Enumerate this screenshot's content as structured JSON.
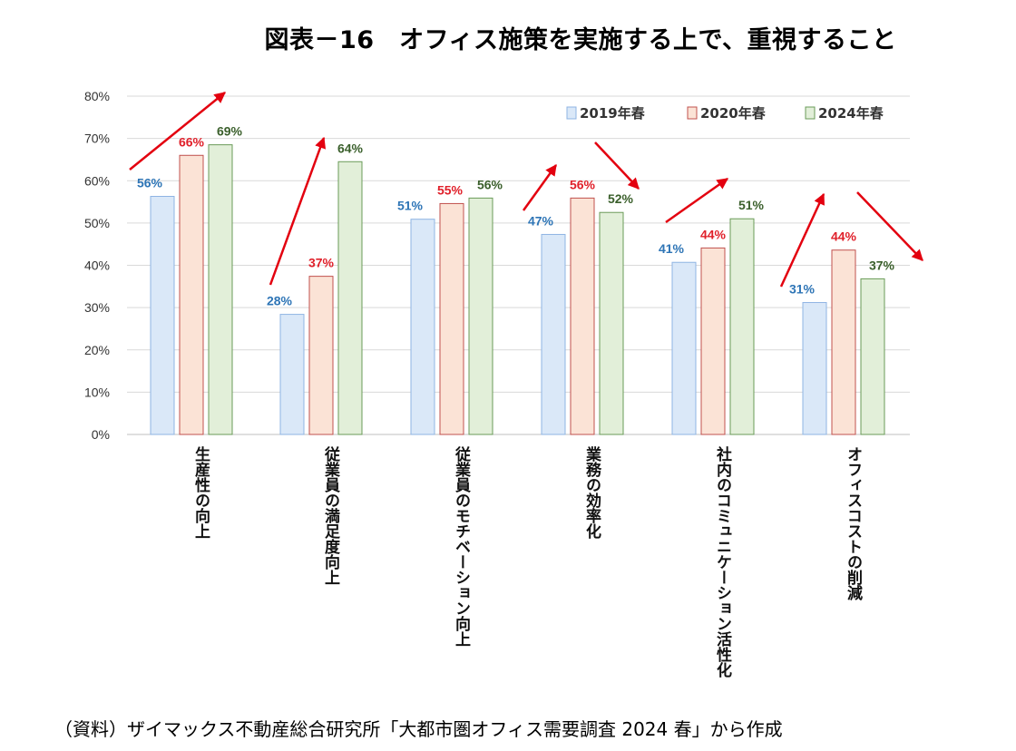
{
  "title": "図表－16　オフィス施策を実施する上で、重視すること",
  "source": "（資料）ザイマックス不動産総合研究所「大都市圏オフィス需要調査 2024 春」から作成",
  "chart_data": {
    "type": "bar",
    "title": "図表－16　オフィス施策を実施する上で、重視すること",
    "xlabel": "",
    "ylabel": "",
    "ylim": [
      0,
      80
    ],
    "ytick_step": 10,
    "ytick_labels": [
      "0%",
      "10%",
      "20%",
      "30%",
      "40%",
      "50%",
      "60%",
      "70%",
      "80%"
    ],
    "grid": true,
    "legend_position": "top-right",
    "categories": [
      "生産性の向上",
      "従業員の満足度向上",
      "従業員のモチベーション向上",
      "業務の効率化",
      "社内のコミュニケーション活性化",
      "オフィスコストの削減"
    ],
    "series": [
      {
        "name": "2019年春",
        "values": [
          56,
          28,
          51,
          47,
          41,
          31
        ],
        "actual": [
          56.3,
          28.4,
          50.9,
          47.3,
          40.7,
          31.2
        ],
        "labels": [
          "56%",
          "28%",
          "51%",
          "47%",
          "41%",
          "31%"
        ],
        "fill": "#dae8f8",
        "stroke": "#8fb4e3",
        "label_color": "#2e75b6"
      },
      {
        "name": "2020年春",
        "values": [
          66,
          37,
          55,
          56,
          44,
          44
        ],
        "actual": [
          66.0,
          37.4,
          54.6,
          55.9,
          44.1,
          43.6
        ],
        "labels": [
          "66%",
          "37%",
          "55%",
          "56%",
          "44%",
          "44%"
        ],
        "fill": "#fbe3d6",
        "stroke": "#c0504d",
        "label_color": "#e0202a"
      },
      {
        "name": "2024年春",
        "values": [
          69,
          64,
          56,
          52,
          51,
          37
        ],
        "actual": [
          68.5,
          64.5,
          55.9,
          52.5,
          51.0,
          36.8
        ],
        "labels": [
          "69%",
          "64%",
          "56%",
          "52%",
          "51%",
          "37%"
        ],
        "fill": "#e2efd9",
        "stroke": "#6a9b58",
        "label_color": "#3a5f2b"
      }
    ],
    "annotations": "red trend arrows above each category group",
    "arrow_color": "#e3000f"
  }
}
